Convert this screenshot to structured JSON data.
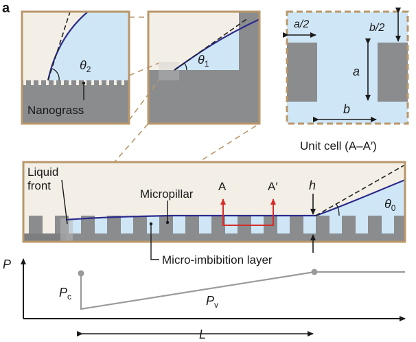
{
  "panel_label": "a",
  "colors": {
    "liquid": "#cfe6f7",
    "air": "#f3efe6",
    "solid": "#8a8c8e",
    "solid_dark": "#6e7072",
    "frame": "#b9976a",
    "meniscus": "#2b2b8c",
    "arrow_red": "#d62b2b",
    "pressure": "#9a9a9a",
    "axis": "#1a1a1a"
  },
  "inset_nano": {
    "angle_label": "θ",
    "angle_sub": "2",
    "caption": "Nanograss"
  },
  "inset_micro": {
    "angle_label": "θ",
    "angle_sub": "1"
  },
  "unit_cell": {
    "half_a": "a/2",
    "half_b": "b/2",
    "a": "a",
    "b": "b",
    "caption": "Unit cell (A–A′)"
  },
  "main": {
    "liquid_front_line1": "Liquid",
    "liquid_front_line2": "front",
    "micropillar": "Micropillar",
    "marker_a": "A",
    "marker_a_prime": "A′",
    "h": "h",
    "theta0": "θ",
    "theta0_sub": "0",
    "micro_layer": "Micro-imbibition layer"
  },
  "pressure_plot": {
    "y_axis": "P",
    "pc": "P",
    "pc_sub": "c",
    "pv": "P",
    "pv_sub": "v",
    "length": "L"
  }
}
